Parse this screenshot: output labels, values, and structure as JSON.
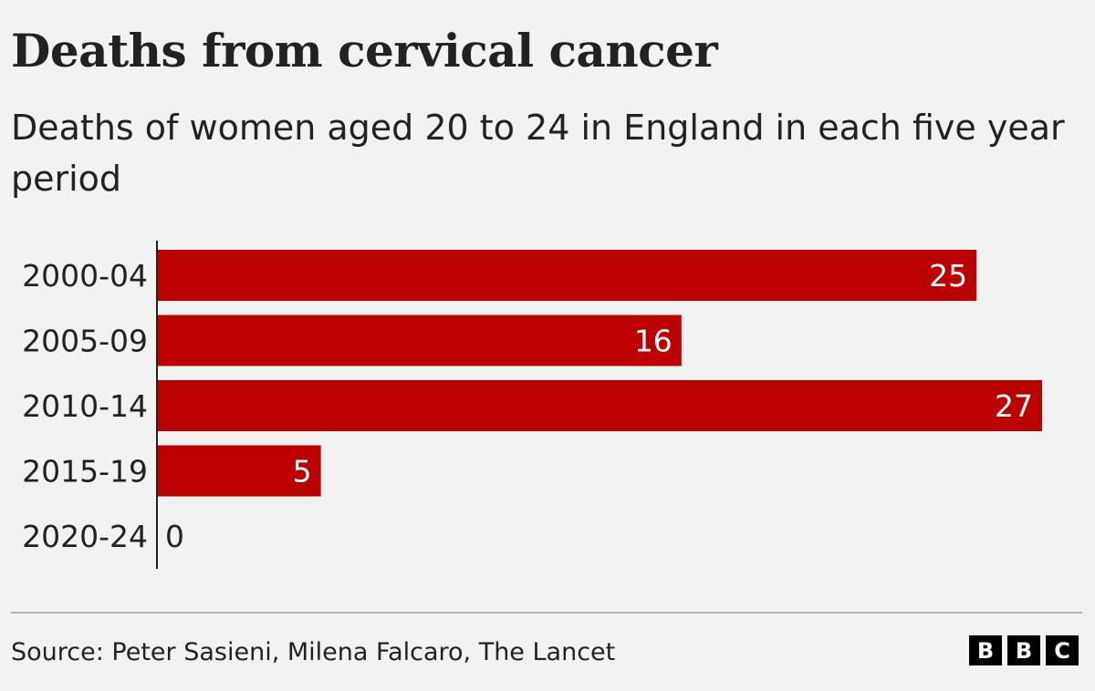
{
  "header": {
    "title": "Deaths from cervical cancer",
    "subtitle": "Deaths of women aged 20 to 24 in England in each five year period"
  },
  "footer": {
    "source": "Source: Peter Sasieni, Milena Falcaro, The Lancet",
    "logo_letters": [
      "B",
      "B",
      "C"
    ]
  },
  "colors": {
    "bar": "#bb0000",
    "label_inside": "#ffffff",
    "label_outside": "#222222",
    "axis": "#222222"
  },
  "chart_data": {
    "type": "bar",
    "orientation": "horizontal",
    "title": "Deaths from cervical cancer",
    "subtitle": "Deaths of women aged 20 to 24 in England in each five year period",
    "categories": [
      "2000-04",
      "2005-09",
      "2010-14",
      "2015-19",
      "2020-24"
    ],
    "values": [
      25,
      16,
      27,
      5,
      0
    ],
    "xlim": [
      0,
      27
    ],
    "grid": false,
    "legend": "none",
    "data_labels": true
  }
}
